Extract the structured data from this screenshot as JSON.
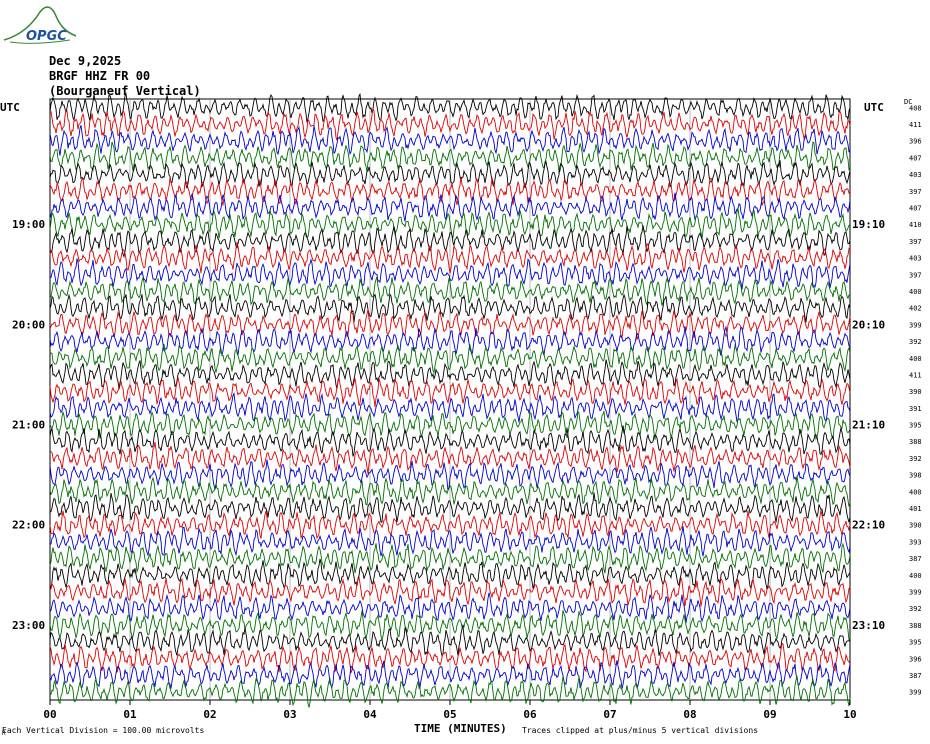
{
  "logo": {
    "text": "OPGC"
  },
  "header": {
    "date": "Dec 9,2025",
    "station": "BRGF HHZ FR 00",
    "description": "(Bourganeuf Vertical)",
    "utc_left": "UTC",
    "utc_right": "UTC",
    "dc_label": "DC"
  },
  "colors": {
    "cycle": [
      "#000000",
      "#e00000",
      "#0000d0",
      "#007000"
    ]
  },
  "chart_data": {
    "type": "line",
    "xlabel": "TIME (MINUTES)",
    "xlim": [
      0,
      10
    ],
    "x_ticks": [
      "00",
      "01",
      "02",
      "03",
      "04",
      "05",
      "06",
      "07",
      "08",
      "09",
      "10"
    ],
    "trace_minutes": 10,
    "left_time_labels": [
      {
        "trace": 7,
        "label": "19:00"
      },
      {
        "trace": 13,
        "label": "20:00"
      },
      {
        "trace": 19,
        "label": "21:00"
      },
      {
        "trace": 25,
        "label": "22:00"
      },
      {
        "trace": 31,
        "label": "23:00"
      }
    ],
    "right_time_labels": [
      {
        "trace": 7,
        "label": "19:10"
      },
      {
        "trace": 13,
        "label": "20:10"
      },
      {
        "trace": 19,
        "label": "21:10"
      },
      {
        "trace": 25,
        "label": "22:10"
      },
      {
        "trace": 31,
        "label": "23:10"
      }
    ],
    "dc_offsets": [
      408,
      411,
      396,
      407,
      403,
      397,
      407,
      410,
      397,
      403,
      397,
      400,
      402,
      399,
      392,
      400,
      411,
      390,
      391,
      395,
      388,
      392,
      398,
      400,
      401,
      390,
      393,
      387,
      400,
      399,
      392,
      388,
      395,
      396,
      387,
      399
    ],
    "scale_note": "Each Vertical Division =  100.00 microvolts",
    "clip_note": "Traces clipped at plus/minus 5 vertical divisions"
  },
  "footer": {
    "corner_mark": "R"
  }
}
